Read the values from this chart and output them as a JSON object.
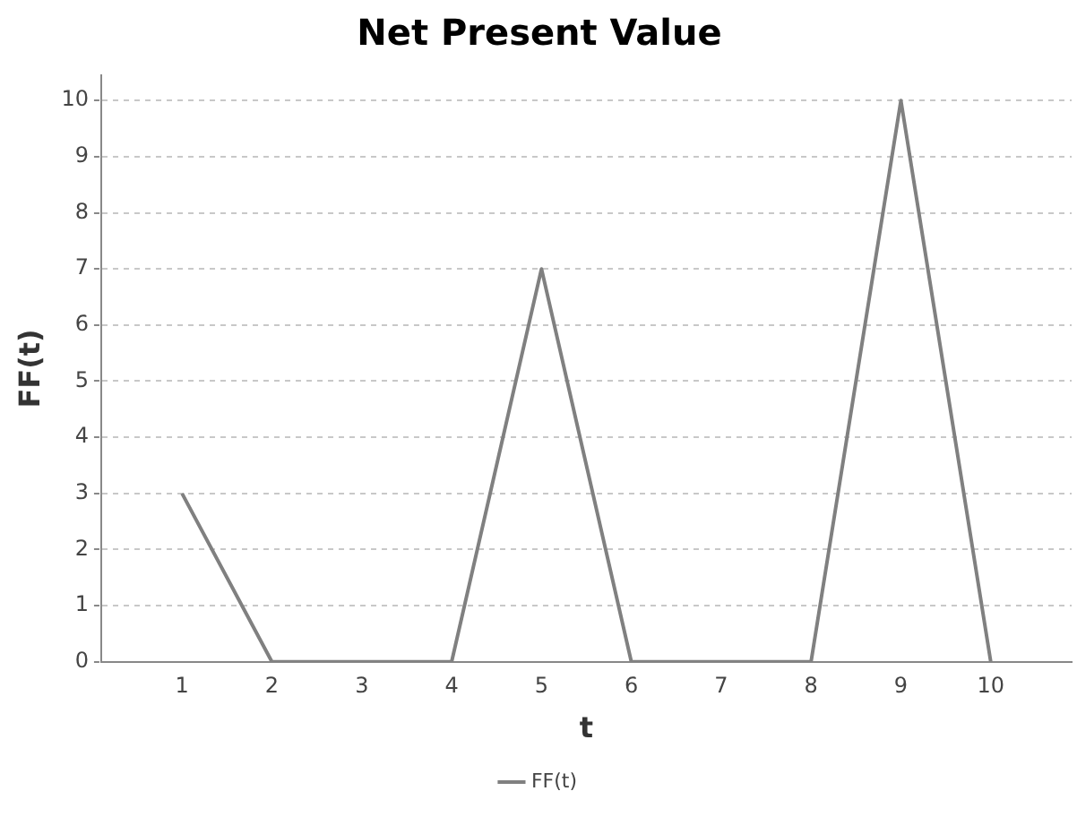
{
  "chart_data": {
    "type": "line",
    "title": "Net Present Value",
    "xlabel": "t",
    "ylabel": "FF(t)",
    "x": [
      1,
      2,
      3,
      4,
      5,
      6,
      7,
      8,
      9,
      10
    ],
    "series": [
      {
        "name": "FF(t)",
        "color": "#808080",
        "values": [
          3,
          0,
          0,
          0,
          7,
          0,
          0,
          0,
          10,
          0
        ]
      }
    ],
    "xlim": [
      0.1,
      10.9
    ],
    "xticks": [
      1,
      2,
      3,
      4,
      5,
      6,
      7,
      8,
      9,
      10
    ],
    "ylim": [
      0,
      10.45
    ],
    "yticks": [
      0,
      1,
      2,
      3,
      4,
      5,
      6,
      7,
      8,
      9,
      10
    ],
    "grid": "y",
    "legend": "bottom",
    "marker": "none",
    "line_style": "solid"
  }
}
